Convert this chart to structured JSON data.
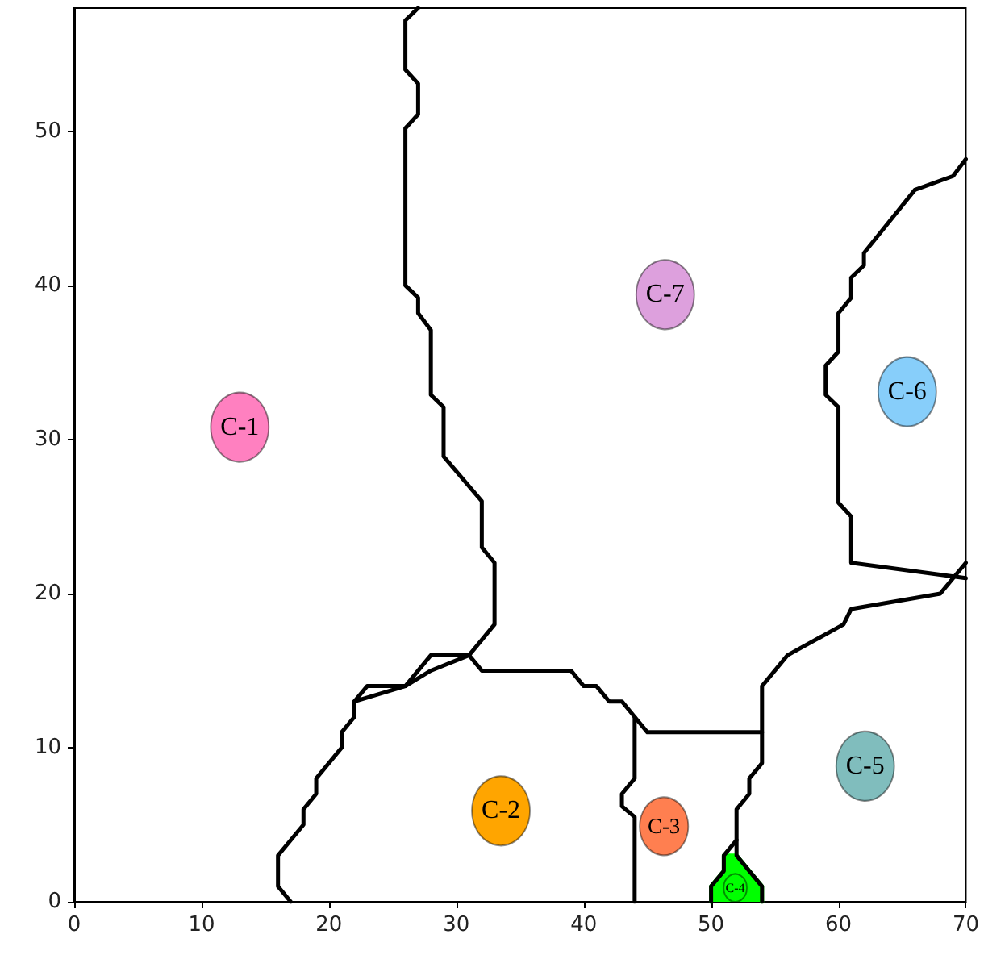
{
  "chart_data": {
    "type": "scatter",
    "xlim": [
      0,
      70
    ],
    "ylim": [
      0,
      58
    ],
    "xticks": [
      0,
      10,
      20,
      30,
      40,
      50,
      60,
      70
    ],
    "yticks": [
      0,
      10,
      20,
      30,
      40,
      50
    ],
    "marker": "circle",
    "series": [
      {
        "type": "area",
        "color": "#00ff00",
        "marker": "none",
        "x": [
          50,
          50,
          51,
          51,
          52,
          54,
          54
        ],
        "values": [
          0,
          1,
          2,
          3,
          3,
          1,
          0
        ]
      },
      {
        "type": "line",
        "color": "#000000",
        "marker": "none",
        "line_style": "solid",
        "x": [
          27,
          26,
          26,
          27,
          27,
          26,
          26,
          27,
          27,
          28,
          28,
          29,
          29,
          32,
          32,
          33,
          33,
          31
        ],
        "values": [
          58,
          57.2,
          54,
          53.1,
          51.1,
          50.2,
          40,
          39.2,
          38.2,
          37.1,
          32.9,
          32.1,
          28.9,
          26,
          23,
          22,
          18,
          16
        ]
      },
      {
        "type": "line",
        "color": "#000000",
        "marker": "none",
        "line_style": "solid",
        "x": [
          31,
          28,
          26,
          23,
          22,
          22,
          21,
          21,
          19,
          19,
          18,
          18,
          16,
          16,
          17
        ],
        "values": [
          16,
          16,
          14,
          14,
          13,
          12,
          11,
          10,
          8,
          7,
          6,
          5,
          3,
          1,
          0
        ]
      },
      {
        "type": "line",
        "color": "#000000",
        "marker": "none",
        "line_style": "solid",
        "x": [
          22,
          26,
          28,
          31
        ],
        "values": [
          13,
          14,
          15,
          16
        ]
      },
      {
        "type": "line",
        "color": "#000000",
        "marker": "none",
        "line_style": "solid",
        "x": [
          31,
          32,
          39,
          40,
          41,
          42,
          43,
          44,
          44,
          43,
          43,
          44,
          44
        ],
        "values": [
          16,
          15,
          15,
          14,
          14,
          13,
          13,
          12,
          8,
          7,
          6.2,
          5.5,
          0
        ]
      },
      {
        "type": "line",
        "color": "#000000",
        "marker": "none",
        "line_style": "solid",
        "x": [
          44,
          45,
          54,
          54,
          56,
          60.4,
          61,
          68,
          70
        ],
        "values": [
          12,
          11,
          11,
          14,
          16,
          18,
          19,
          20,
          22
        ]
      },
      {
        "type": "line",
        "color": "#000000",
        "marker": "none",
        "line_style": "solid",
        "x": [
          54,
          54,
          53,
          53,
          52,
          52,
          51,
          51,
          50,
          50
        ],
        "values": [
          11,
          9,
          8,
          7,
          6,
          4,
          3,
          2,
          1,
          0
        ]
      },
      {
        "type": "line",
        "color": "#000000",
        "marker": "none",
        "line_style": "solid",
        "x": [
          52,
          52,
          54,
          54
        ],
        "values": [
          4,
          3,
          1,
          0
        ]
      },
      {
        "type": "line",
        "color": "#000000",
        "marker": "none",
        "line_style": "solid",
        "x": [
          70,
          69,
          66,
          62,
          62,
          61,
          61,
          60,
          60,
          59,
          59,
          60,
          60,
          61,
          61,
          70
        ],
        "values": [
          48.2,
          47.1,
          46.2,
          42.1,
          41.3,
          40.5,
          39.2,
          38.2,
          35.7,
          34.8,
          32.9,
          32.1,
          25.9,
          25,
          22,
          21
        ]
      },
      {
        "name": "C-1",
        "color": "#ff80c0",
        "x": [
          13
        ],
        "values": [
          30.8
        ],
        "sizes": [
          1
        ]
      },
      {
        "name": "C-2",
        "color": "#ffa500",
        "x": [
          33.5
        ],
        "values": [
          5.9
        ],
        "sizes": [
          1
        ]
      },
      {
        "name": "C-3",
        "color": "#ff7f50",
        "x": [
          46.3
        ],
        "values": [
          4.9
        ],
        "sizes": [
          0.7
        ]
      },
      {
        "name": "C-4",
        "color": "#00ff00",
        "x": [
          51.9
        ],
        "values": [
          0.9
        ],
        "sizes": [
          0.16
        ]
      },
      {
        "name": "C-5",
        "color": "#80bdbd",
        "x": [
          62.1
        ],
        "values": [
          8.8
        ],
        "sizes": [
          1
        ]
      },
      {
        "name": "C-6",
        "color": "#87cefa",
        "x": [
          65.4
        ],
        "values": [
          33.1
        ],
        "sizes": [
          1
        ]
      },
      {
        "name": "C-7",
        "color": "#dda0dd",
        "x": [
          46.4
        ],
        "values": [
          39.4
        ],
        "sizes": [
          1
        ]
      }
    ]
  }
}
